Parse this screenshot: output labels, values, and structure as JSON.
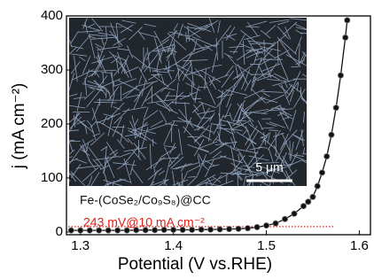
{
  "chart_data": {
    "type": "line",
    "xlabel": "Potential (V vs.RHE)",
    "ylabel": "j (mA cm⁻²)",
    "x": [
      1.29,
      1.3,
      1.31,
      1.32,
      1.33,
      1.34,
      1.35,
      1.36,
      1.37,
      1.38,
      1.39,
      1.4,
      1.41,
      1.42,
      1.43,
      1.44,
      1.45,
      1.46,
      1.47,
      1.48,
      1.49,
      1.5,
      1.51,
      1.52,
      1.53,
      1.54,
      1.545,
      1.55,
      1.555,
      1.56,
      1.565,
      1.57,
      1.575,
      1.58,
      1.585,
      1.587
    ],
    "series": [
      {
        "color": "#111111",
        "values": [
          3,
          3,
          3,
          3,
          3,
          3,
          3,
          3.5,
          3.5,
          3.5,
          4,
          4,
          4,
          4,
          4.5,
          4.5,
          5,
          5.5,
          6,
          7,
          9,
          12,
          16,
          24,
          34,
          48,
          56,
          65,
          85,
          110,
          140,
          180,
          230,
          290,
          360,
          392
        ]
      }
    ],
    "xlim": [
      1.285,
      1.612
    ],
    "ylim": [
      -5,
      400
    ],
    "xticks": [
      1.3,
      1.4,
      1.5,
      1.6
    ],
    "yticks": [
      0,
      100,
      200,
      300,
      400
    ],
    "reference_line": {
      "y": 10,
      "x_end": 1.573,
      "color": "#e0201b"
    },
    "annotations": [
      {
        "text": "Fe-(CoSe₂/Co₉S₈)@CC",
        "color": "#111111"
      },
      {
        "text": "243 mV@10 mA cm⁻²",
        "color": "#e0201b"
      }
    ],
    "inset": {
      "scale_bar": "5 μm"
    }
  }
}
